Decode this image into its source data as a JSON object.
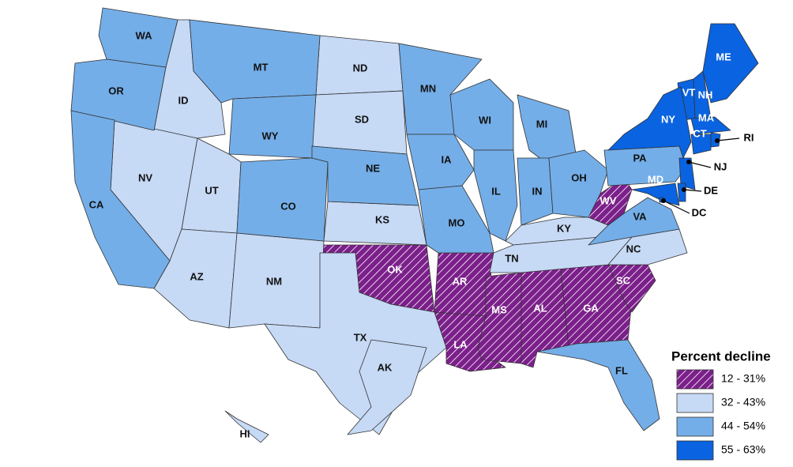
{
  "legend": {
    "title": "Percent decline",
    "classes": [
      {
        "label": "12 - 31%",
        "color": "#7b1f8a",
        "pattern": "hatch",
        "states": [
          "OK",
          "AR",
          "LA",
          "MS",
          "AL",
          "GA",
          "SC",
          "WV"
        ]
      },
      {
        "label": "32 - 43%",
        "color": "#c6d9f5",
        "states": [
          "ID",
          "NV",
          "UT",
          "AZ",
          "NM",
          "TX",
          "ND",
          "SD",
          "KS",
          "KY",
          "TN",
          "NC",
          "AK",
          "HI"
        ]
      },
      {
        "label": "44 - 54%",
        "color": "#74aee8",
        "states": [
          "WA",
          "OR",
          "CA",
          "MT",
          "WY",
          "CO",
          "NE",
          "MN",
          "IA",
          "MO",
          "WI",
          "IL",
          "MI",
          "IN",
          "OH",
          "PA",
          "VA",
          "FL"
        ]
      },
      {
        "label": "55 - 63%",
        "color": "#0a63e0",
        "states": [
          "ME",
          "VT",
          "NH",
          "NY",
          "MA",
          "CT",
          "RI",
          "NJ",
          "DE",
          "MD",
          "DC"
        ]
      }
    ]
  }
}
